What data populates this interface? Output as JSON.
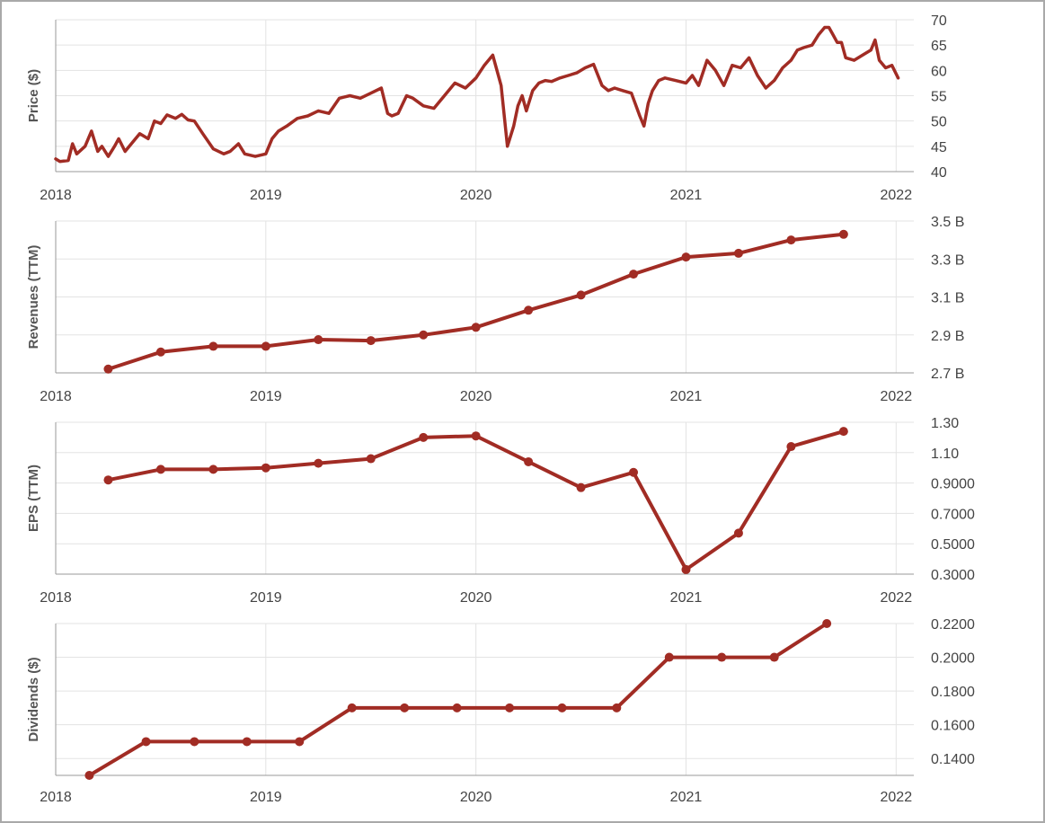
{
  "colors": {
    "series": "#a12c24",
    "grid": "#e3e3e3",
    "axis": "#999999",
    "text": "#444444"
  },
  "chart_data": [
    {
      "type": "line",
      "ylabel": "Price ($)",
      "xlim": [
        2018.0,
        2022.05
      ],
      "x_ticks": [
        2018,
        2019,
        2020,
        2021,
        2022
      ],
      "ylim": [
        40,
        70
      ],
      "y_ticks": [
        40,
        45,
        50,
        55,
        60,
        65,
        70
      ],
      "y_tick_labels": [
        "40",
        "45",
        "50",
        "55",
        "60",
        "65",
        "70"
      ],
      "markers": false,
      "grid": true,
      "series": [
        {
          "x": [
            2018.0,
            2018.02,
            2018.06,
            2018.08,
            2018.1,
            2018.14,
            2018.17,
            2018.2,
            2018.22,
            2018.25,
            2018.28,
            2018.3,
            2018.33,
            2018.36,
            2018.4,
            2018.44,
            2018.47,
            2018.5,
            2018.53,
            2018.57,
            2018.6,
            2018.63,
            2018.66,
            2018.7,
            2018.75,
            2018.8,
            2018.83,
            2018.87,
            2018.9,
            2018.95,
            2019.0,
            2019.03,
            2019.06,
            2019.1,
            2019.15,
            2019.2,
            2019.25,
            2019.3,
            2019.35,
            2019.4,
            2019.45,
            2019.5,
            2019.55,
            2019.58,
            2019.6,
            2019.63,
            2019.67,
            2019.7,
            2019.75,
            2019.8,
            2019.85,
            2019.9,
            2019.95,
            2020.0,
            2020.04,
            2020.08,
            2020.12,
            2020.15,
            2020.18,
            2020.2,
            2020.22,
            2020.24,
            2020.27,
            2020.3,
            2020.33,
            2020.36,
            2020.4,
            2020.44,
            2020.48,
            2020.52,
            2020.56,
            2020.6,
            2020.63,
            2020.66,
            2020.7,
            2020.74,
            2020.78,
            2020.8,
            2020.82,
            2020.84,
            2020.87,
            2020.9,
            2020.95,
            2021.0,
            2021.03,
            2021.06,
            2021.1,
            2021.14,
            2021.18,
            2021.22,
            2021.26,
            2021.3,
            2021.34,
            2021.38,
            2021.42,
            2021.46,
            2021.5,
            2021.53,
            2021.56,
            2021.6,
            2021.63,
            2021.66,
            2021.68,
            2021.7,
            2021.72,
            2021.74,
            2021.76,
            2021.8,
            2021.84,
            2021.88,
            2021.9,
            2021.92,
            2021.95,
            2021.98,
            2022.01
          ],
          "y": [
            42.5,
            42.0,
            42.2,
            45.5,
            43.5,
            45.0,
            48.0,
            44.0,
            45.0,
            43.0,
            45.0,
            46.5,
            44.0,
            45.5,
            47.5,
            46.5,
            50.0,
            49.5,
            51.2,
            50.5,
            51.3,
            50.2,
            50.0,
            47.5,
            44.5,
            43.5,
            44.0,
            45.5,
            43.5,
            43.0,
            43.5,
            46.5,
            48.0,
            49.0,
            50.5,
            51.0,
            52.0,
            51.5,
            54.5,
            55.0,
            54.5,
            55.5,
            56.5,
            51.5,
            51.0,
            51.5,
            55.0,
            54.5,
            53.0,
            52.5,
            55.0,
            57.5,
            56.5,
            58.5,
            61.0,
            63.0,
            57.0,
            45.0,
            49.0,
            53.0,
            55.0,
            52.0,
            56.0,
            57.5,
            58.0,
            57.8,
            58.5,
            59.0,
            59.5,
            60.5,
            61.2,
            57.0,
            56.0,
            56.5,
            56.0,
            55.5,
            51.0,
            49.0,
            53.5,
            56.0,
            58.0,
            58.5,
            58.0,
            57.5,
            59.0,
            57.0,
            62.0,
            60.0,
            57.0,
            61.0,
            60.5,
            62.5,
            59.0,
            56.5,
            58.0,
            60.5,
            62.0,
            64.0,
            64.5,
            65.0,
            67.0,
            68.5,
            68.5,
            67.0,
            65.5,
            65.5,
            62.5,
            62.0,
            63.0,
            64.0,
            66.0,
            62.0,
            60.5,
            61.0,
            58.5
          ]
        }
      ]
    },
    {
      "type": "line",
      "ylabel": "Revenues (TTM)",
      "xlim": [
        2018.0,
        2022.05
      ],
      "x_ticks": [
        2018,
        2019,
        2020,
        2021,
        2022
      ],
      "ylim": [
        2.7,
        3.5
      ],
      "y_ticks": [
        2.7,
        2.9,
        3.1,
        3.3,
        3.5
      ],
      "y_tick_labels": [
        "2.7 B",
        "2.9 B",
        "3.1 B",
        "3.3 B",
        "3.5 B"
      ],
      "y_unit": "B",
      "markers": true,
      "grid": true,
      "series": [
        {
          "x": [
            2018.25,
            2018.5,
            2018.75,
            2019.0,
            2019.25,
            2019.5,
            2019.75,
            2020.0,
            2020.25,
            2020.5,
            2020.75,
            2021.0,
            2021.25,
            2021.5,
            2021.75
          ],
          "y": [
            2.72,
            2.81,
            2.84,
            2.84,
            2.875,
            2.87,
            2.9,
            2.94,
            3.03,
            3.11,
            3.22,
            3.31,
            3.33,
            3.4,
            3.43
          ]
        }
      ]
    },
    {
      "type": "line",
      "ylabel": "EPS (TTM)",
      "xlim": [
        2018.0,
        2022.05
      ],
      "x_ticks": [
        2018,
        2019,
        2020,
        2021,
        2022
      ],
      "ylim": [
        0.3,
        1.3
      ],
      "y_ticks": [
        0.3,
        0.5,
        0.7,
        0.9,
        1.1,
        1.3
      ],
      "y_tick_labels": [
        "0.3000",
        "0.5000",
        "0.7000",
        "0.9000",
        "1.10",
        "1.30"
      ],
      "markers": true,
      "grid": true,
      "series": [
        {
          "x": [
            2018.25,
            2018.5,
            2018.75,
            2019.0,
            2019.25,
            2019.5,
            2019.75,
            2020.0,
            2020.25,
            2020.5,
            2020.75,
            2021.0,
            2021.25,
            2021.5,
            2021.75
          ],
          "y": [
            0.92,
            0.99,
            0.99,
            1.0,
            1.03,
            1.06,
            1.2,
            1.21,
            1.04,
            0.87,
            0.97,
            0.33,
            0.57,
            1.14,
            1.24
          ]
        }
      ]
    },
    {
      "type": "line",
      "ylabel": "Dividends ($)",
      "xlim": [
        2018.0,
        2022.05
      ],
      "x_ticks": [
        2018,
        2019,
        2020,
        2021,
        2022
      ],
      "ylim": [
        0.13,
        0.22
      ],
      "y_ticks": [
        0.14,
        0.16,
        0.18,
        0.2,
        0.22
      ],
      "y_tick_labels": [
        "0.1400",
        "0.1600",
        "0.1800",
        "0.2000",
        "0.2200"
      ],
      "markers": true,
      "grid": true,
      "series": [
        {
          "x": [
            2018.16,
            2018.43,
            2018.66,
            2018.91,
            2019.16,
            2019.41,
            2019.66,
            2019.91,
            2020.16,
            2020.41,
            2020.67,
            2020.92,
            2021.17,
            2021.42,
            2021.67
          ],
          "y": [
            0.13,
            0.15,
            0.15,
            0.15,
            0.15,
            0.17,
            0.17,
            0.17,
            0.17,
            0.17,
            0.17,
            0.2,
            0.2,
            0.2,
            0.22
          ]
        }
      ]
    }
  ]
}
